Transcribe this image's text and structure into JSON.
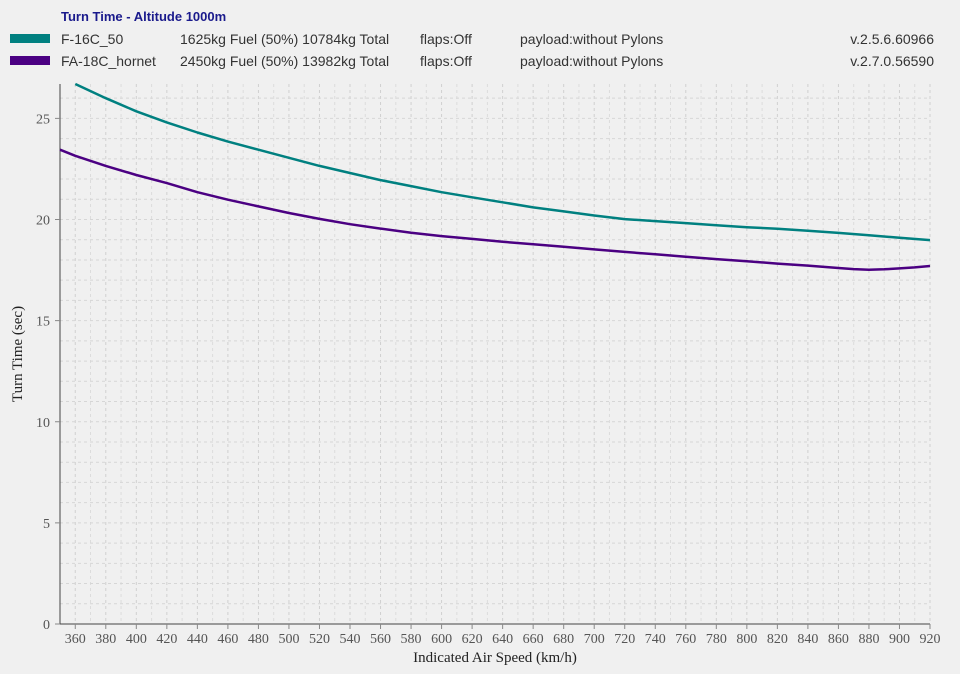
{
  "legend": {
    "title": "Turn Time - Altitude 1000m",
    "entries": [
      {
        "name": "F-16C_50",
        "fuel": "1625kg Fuel (50%) 10784kg Total",
        "flaps": "flaps:Off",
        "payload": "payload:without Pylons",
        "version": "v.2.5.6.60966",
        "color": "#008080"
      },
      {
        "name": "FA-18C_hornet",
        "fuel": "2450kg Fuel (50%) 13982kg Total",
        "flaps": "flaps:Off",
        "payload": "payload:without Pylons",
        "version": "v.2.7.0.56590",
        "color": "#4b0082"
      }
    ]
  },
  "chart_data": {
    "type": "line",
    "title": "Turn Time - Altitude 1000m",
    "xlabel": "Indicated Air Speed (km/h)",
    "ylabel": "Turn Time (sec)",
    "xlim": [
      350,
      920
    ],
    "ylim": [
      0,
      26.7
    ],
    "xticks": [
      360,
      380,
      400,
      420,
      440,
      460,
      480,
      500,
      520,
      540,
      560,
      580,
      600,
      620,
      640,
      660,
      680,
      700,
      720,
      740,
      760,
      780,
      800,
      820,
      840,
      860,
      880,
      900,
      920
    ],
    "yticks": [
      0,
      5,
      10,
      15,
      20,
      25
    ],
    "grid": true,
    "legend_position": "top",
    "series": [
      {
        "name": "F-16C_50",
        "color": "#008080",
        "x": [
          360,
          380,
          400,
          420,
          440,
          460,
          480,
          500,
          520,
          540,
          560,
          580,
          600,
          620,
          640,
          660,
          680,
          700,
          720,
          740,
          760,
          780,
          800,
          820,
          840,
          860,
          880,
          900,
          920
        ],
        "y": [
          26.7,
          26.0,
          25.35,
          24.8,
          24.3,
          23.85,
          23.45,
          23.05,
          22.65,
          22.3,
          21.95,
          21.65,
          21.35,
          21.1,
          20.85,
          20.6,
          20.4,
          20.2,
          20.02,
          19.92,
          19.82,
          19.72,
          19.62,
          19.54,
          19.44,
          19.34,
          19.22,
          19.1,
          18.98
        ]
      },
      {
        "name": "FA-18C_hornet",
        "color": "#4b0082",
        "x": [
          350,
          360,
          380,
          400,
          420,
          440,
          460,
          480,
          500,
          520,
          540,
          560,
          580,
          600,
          620,
          640,
          660,
          680,
          700,
          720,
          740,
          760,
          780,
          800,
          820,
          840,
          860,
          870,
          880,
          890,
          900,
          910,
          920
        ],
        "y": [
          23.45,
          23.15,
          22.65,
          22.2,
          21.8,
          21.35,
          20.98,
          20.65,
          20.32,
          20.03,
          19.77,
          19.55,
          19.35,
          19.18,
          19.04,
          18.9,
          18.78,
          18.65,
          18.52,
          18.4,
          18.28,
          18.16,
          18.04,
          17.94,
          17.82,
          17.72,
          17.6,
          17.55,
          17.52,
          17.54,
          17.58,
          17.63,
          17.7
        ]
      }
    ]
  }
}
